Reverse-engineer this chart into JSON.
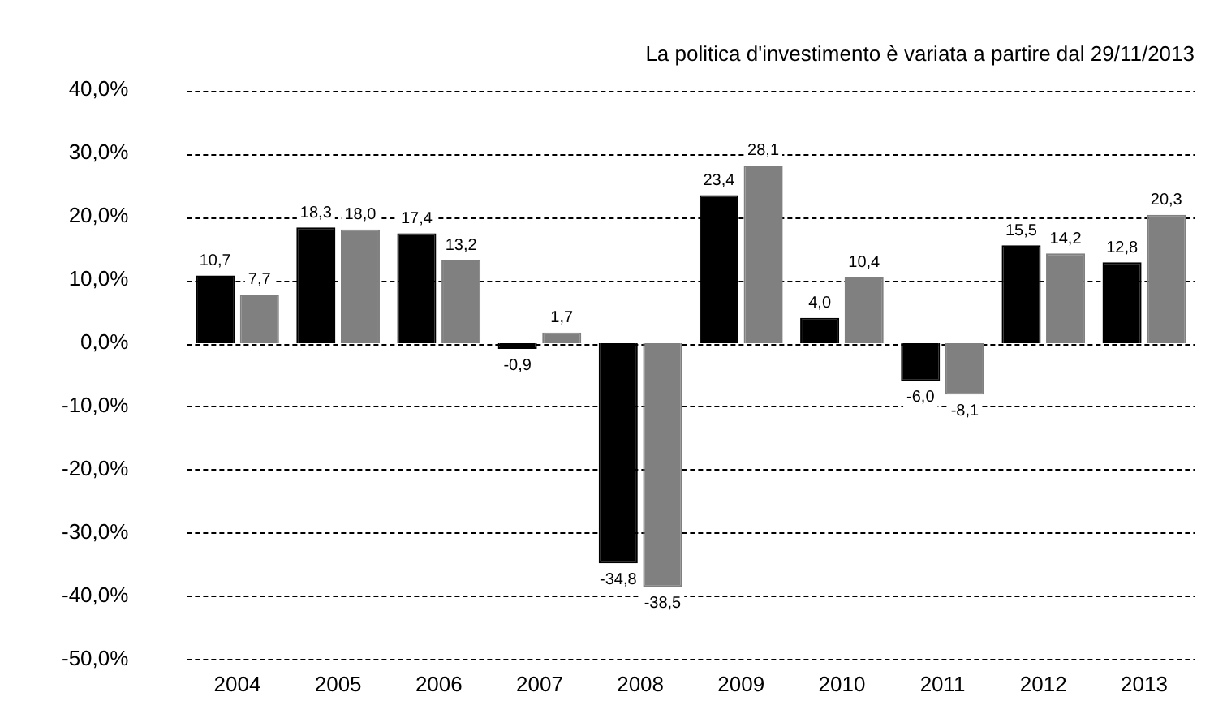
{
  "chart_data": {
    "type": "bar",
    "title": "La politica d'investimento è variata a partire dal 29/11/2013",
    "categories": [
      "2004",
      "2005",
      "2006",
      "2007",
      "2008",
      "2009",
      "2010",
      "2011",
      "2012",
      "2013"
    ],
    "series": [
      {
        "color": "#000000",
        "values": [
          10.7,
          18.3,
          17.4,
          -0.9,
          -34.8,
          23.4,
          4.0,
          -6.0,
          15.5,
          12.8
        ],
        "value_labels": [
          "10,7",
          "18,3",
          "17,4",
          "-0,9",
          "-34,8",
          "23,4",
          "4,0",
          "-6,0",
          "15,5",
          "12,8"
        ]
      },
      {
        "color": "#808080",
        "values": [
          7.7,
          18.0,
          13.2,
          1.7,
          -38.5,
          28.1,
          10.4,
          -8.1,
          14.2,
          20.3
        ],
        "value_labels": [
          "7,7",
          "18,0",
          "13,2",
          "1,7",
          "-38,5",
          "28,1",
          "10,4",
          "-8,1",
          "14,2",
          "20,3"
        ]
      }
    ],
    "ylim": [
      -50,
      40
    ],
    "yticks": [
      {
        "value": -50,
        "label": "-50,0%"
      },
      {
        "value": -40,
        "label": "-40,0%"
      },
      {
        "value": -30,
        "label": "-30,0%"
      },
      {
        "value": -20,
        "label": "-20,0%"
      },
      {
        "value": -10,
        "label": "-10,0%"
      },
      {
        "value": 0,
        "label": "0,0%"
      },
      {
        "value": 10,
        "label": "10,0%"
      },
      {
        "value": 20,
        "label": "20,0%"
      },
      {
        "value": 30,
        "label": "30,0%"
      },
      {
        "value": 40,
        "label": "40,0%"
      }
    ],
    "grid": "y",
    "legend": false
  }
}
